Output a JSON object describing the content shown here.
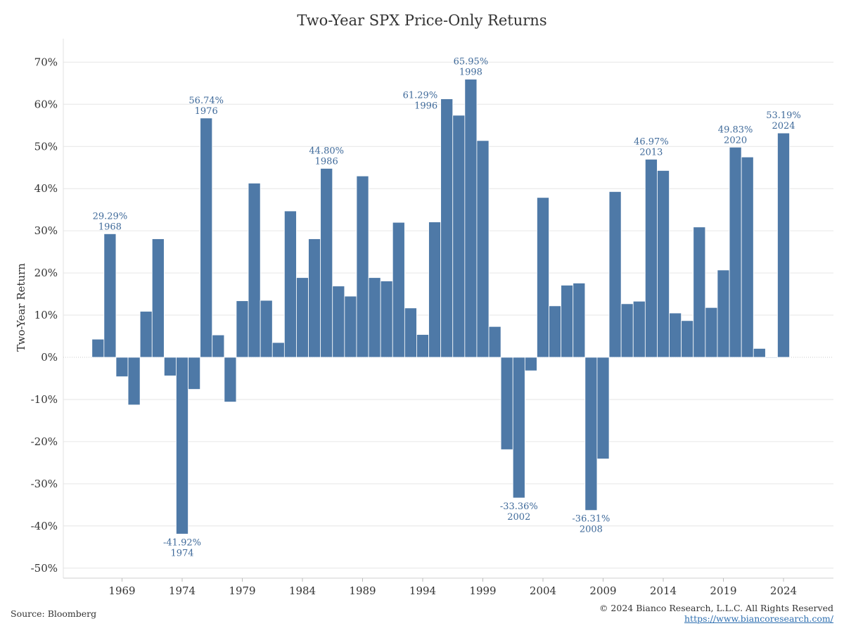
{
  "title": "Two-Year SPX Price-Only Returns",
  "footer": {
    "source": "Source: Bloomberg",
    "copyright": "© 2024 Bianco Research, L.L.C. All Rights Reserved",
    "url": "https://www.biancoresearch.com/"
  },
  "colors": {
    "bar": "#4e79a7",
    "label": "#3f6a9a",
    "grid": "#e6e6e6",
    "zero_line": "#c8c8c8"
  },
  "chart_data": {
    "type": "bar",
    "title": "Two-Year SPX Price-Only Returns",
    "xlabel": "",
    "ylabel": "Two-Year Return",
    "ylim": [
      -0.52,
      0.73
    ],
    "yticks": [
      -0.5,
      -0.4,
      -0.3,
      -0.2,
      -0.1,
      0,
      0.1,
      0.2,
      0.3,
      0.4,
      0.5,
      0.6,
      0.7
    ],
    "ytick_labels": [
      "-50%",
      "-40%",
      "-30%",
      "-20%",
      "-10%",
      "0%",
      "10%",
      "20%",
      "30%",
      "40%",
      "50%",
      "60%",
      "70%"
    ],
    "xlim": [
      1965,
      2026.5
    ],
    "xticks": [
      1969,
      1974,
      1979,
      1984,
      1989,
      1994,
      1999,
      2004,
      2009,
      2014,
      2019,
      2024
    ],
    "xtick_labels": [
      "1969",
      "1974",
      "1979",
      "1984",
      "1989",
      "1994",
      "1999",
      "2004",
      "2009",
      "2014",
      "2019",
      "2024"
    ],
    "grid": true,
    "x": [
      1967,
      1968,
      1969,
      1970,
      1971,
      1972,
      1973,
      1974,
      1975,
      1976,
      1977,
      1978,
      1979,
      1980,
      1981,
      1982,
      1983,
      1984,
      1985,
      1986,
      1987,
      1988,
      1989,
      1990,
      1991,
      1992,
      1993,
      1994,
      1995,
      1996,
      1997,
      1998,
      1999,
      2000,
      2001,
      2002,
      2003,
      2004,
      2005,
      2006,
      2007,
      2008,
      2009,
      2010,
      2011,
      2012,
      2013,
      2014,
      2015,
      2016,
      2017,
      2018,
      2019,
      2020,
      2021,
      2022,
      2023,
      2024
    ],
    "values": [
      0.043,
      0.2929,
      -0.046,
      -0.113,
      0.109,
      0.281,
      -0.044,
      -0.4192,
      -0.076,
      0.5674,
      0.053,
      -0.106,
      0.134,
      0.413,
      0.135,
      0.035,
      0.347,
      0.189,
      0.281,
      0.448,
      0.169,
      0.145,
      0.43,
      0.189,
      0.181,
      0.32,
      0.117,
      0.054,
      0.321,
      0.6129,
      0.574,
      0.6595,
      0.514,
      0.073,
      -0.219,
      -0.3336,
      -0.032,
      0.379,
      0.122,
      0.171,
      0.176,
      -0.3631,
      -0.241,
      0.393,
      0.127,
      0.133,
      0.4697,
      0.443,
      0.105,
      0.087,
      0.309,
      0.118,
      0.207,
      0.4983,
      0.475,
      0.021,
      -0.001,
      0.5319
    ],
    "annotations": [
      {
        "x": 1968,
        "value": "29.29%",
        "year": "1968",
        "pos": "above"
      },
      {
        "x": 1974,
        "value": "-41.92%",
        "year": "1974",
        "pos": "below"
      },
      {
        "x": 1976,
        "value": "56.74%",
        "year": "1976",
        "pos": "above"
      },
      {
        "x": 1986,
        "value": "44.80%",
        "year": "1986",
        "pos": "above"
      },
      {
        "x": 1996,
        "value": "61.29%",
        "year": "1996",
        "pos": "left"
      },
      {
        "x": 1998,
        "value": "65.95%",
        "year": "1998",
        "pos": "above"
      },
      {
        "x": 2002,
        "value": "-33.36%",
        "year": "2002",
        "pos": "below"
      },
      {
        "x": 2008,
        "value": "-36.31%",
        "year": "2008",
        "pos": "below"
      },
      {
        "x": 2013,
        "value": "46.97%",
        "year": "2013",
        "pos": "above"
      },
      {
        "x": 2020,
        "value": "49.83%",
        "year": "2020",
        "pos": "above"
      },
      {
        "x": 2024,
        "value": "53.19%",
        "year": "2024",
        "pos": "above"
      }
    ]
  }
}
